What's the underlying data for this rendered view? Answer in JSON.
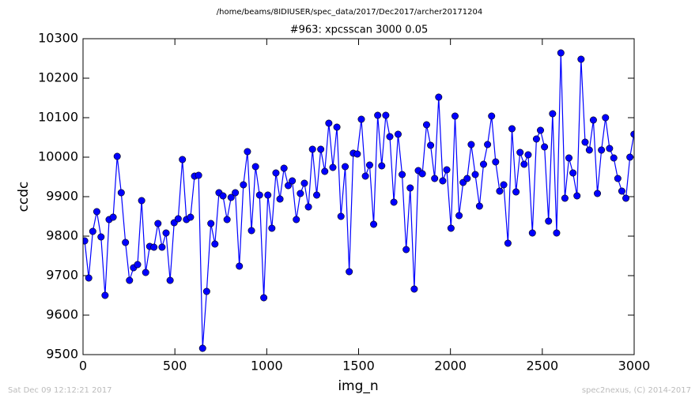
{
  "chart_data": {
    "type": "line",
    "suptitle": "/home/beams/8IDIUSER/spec_data/2017/Dec2017/archer20171204",
    "title": "#963: xpcsscan 3000 0.05",
    "x_label": "img_n",
    "y_label": "ccdc",
    "x": [
      9,
      31,
      53,
      75,
      98,
      120,
      142,
      164,
      186,
      208,
      231,
      253,
      275,
      297,
      319,
      341,
      363,
      386,
      408,
      430,
      452,
      474,
      496,
      518,
      541,
      563,
      585,
      607,
      629,
      651,
      673,
      696,
      718,
      740,
      762,
      784,
      806,
      829,
      851,
      873,
      895,
      917,
      939,
      961,
      984,
      1006,
      1028,
      1050,
      1072,
      1094,
      1117,
      1139,
      1161,
      1183,
      1205,
      1227,
      1249,
      1272,
      1294,
      1316,
      1338,
      1360,
      1382,
      1404,
      1427,
      1449,
      1471,
      1493,
      1515,
      1537,
      1560,
      1582,
      1604,
      1626,
      1648,
      1670,
      1692,
      1715,
      1737,
      1759,
      1781,
      1803,
      1825,
      1847,
      1870,
      1892,
      1914,
      1936,
      1958,
      1980,
      2003,
      2025,
      2047,
      2069,
      2091,
      2113,
      2135,
      2158,
      2180,
      2202,
      2224,
      2246,
      2268,
      2290,
      2313,
      2335,
      2357,
      2379,
      2401,
      2423,
      2446,
      2468,
      2490,
      2512,
      2534,
      2556,
      2578,
      2601,
      2623,
      2645,
      2667,
      2689,
      2711,
      2733,
      2756,
      2778,
      2800,
      2822,
      2844,
      2866,
      2889,
      2911,
      2933,
      2955,
      2977,
      2999
    ],
    "series": [
      {
        "color": "#0000ff",
        "values": [
          9788,
          9694,
          9812,
          9862,
          9798,
          9650,
          9842,
          9848,
          10002,
          9910,
          9784,
          9688,
          9720,
          9728,
          9890,
          9708,
          9774,
          9772,
          9832,
          9772,
          9808,
          9688,
          9834,
          9844,
          9994,
          9842,
          9848,
          9952,
          9954,
          9516,
          9660,
          9832,
          9780,
          9910,
          9902,
          9842,
          9898,
          9910,
          9724,
          9930,
          10014,
          9814,
          9976,
          9904,
          9644,
          9904,
          9820,
          9960,
          9894,
          9972,
          9928,
          9940,
          9842,
          9908,
          9934,
          9874,
          10020,
          9904,
          10020,
          9964,
          10086,
          9974,
          10076,
          9850,
          9976,
          9710,
          10010,
          10008,
          10096,
          9952,
          9980,
          9830,
          10106,
          9978,
          10106,
          10052,
          9886,
          10058,
          9956,
          9766,
          9922,
          9666,
          9966,
          9958,
          10082,
          10030,
          9946,
          10152,
          9940,
          9968,
          9820,
          10104,
          9852,
          9936,
          9946,
          10032,
          9956,
          9876,
          9982,
          10032,
          10104,
          9988,
          9914,
          9930,
          9782,
          10072,
          9912,
          10012,
          9982,
          10006,
          9808,
          10046,
          10068,
          10026,
          9838,
          10110,
          9808,
          10264,
          9896,
          9998,
          9960,
          9902,
          10248,
          10038,
          10018,
          10094,
          9908,
          10018,
          10100,
          10022,
          9998,
          9946,
          9914,
          9896,
          10000,
          10058
        ]
      }
    ],
    "xlim": [
      0,
      3000
    ],
    "xticks": [
      0,
      500,
      1000,
      1500,
      2000,
      2500,
      3000
    ],
    "ylim": [
      9500,
      10300
    ],
    "yticks": [
      9500,
      9600,
      9700,
      9800,
      9900,
      10000,
      10100,
      10200,
      10300
    ]
  },
  "footer": {
    "left": "Sat Dec 09 12:12:21 2017",
    "right": "spec2nexus, (C) 2014-2017"
  }
}
